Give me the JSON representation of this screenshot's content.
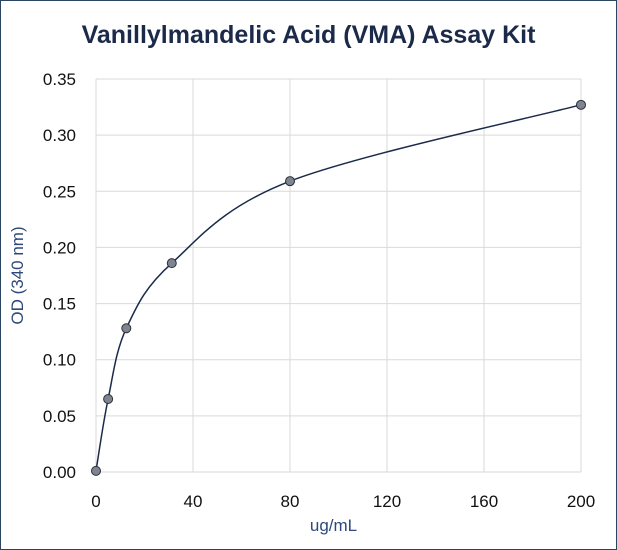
{
  "chart_data": {
    "type": "scatter",
    "title": "Vanillylmandelic Acid (VMA) Assay Kit",
    "xlabel": "ug/mL",
    "ylabel": "OD (340 nm)",
    "xlim": [
      0,
      200
    ],
    "ylim": [
      0,
      0.35
    ],
    "xticks": [
      0,
      40,
      80,
      120,
      160,
      200
    ],
    "yticks": [
      0,
      0.05,
      0.1,
      0.15,
      0.2,
      0.25,
      0.3,
      0.35
    ],
    "ytick_labels": [
      "0.00",
      "0.05",
      "0.10",
      "0.15",
      "0.20",
      "0.25",
      "0.30",
      "0.35"
    ],
    "xtick_labels": [
      "0",
      "40",
      "80",
      "120",
      "160",
      "200"
    ],
    "grid": true,
    "smooth_line": true,
    "series": [
      {
        "x": [
          0,
          5,
          12.5,
          31.25,
          80,
          200
        ],
        "y": [
          0.001,
          0.065,
          0.128,
          0.186,
          0.259,
          0.327
        ]
      }
    ],
    "colors": {
      "line": "#1c2a4a",
      "marker_fill": "#7f8590",
      "marker_stroke": "#2b2f3a",
      "grid": "#d9d9d9",
      "frame": "#2a4560"
    }
  }
}
